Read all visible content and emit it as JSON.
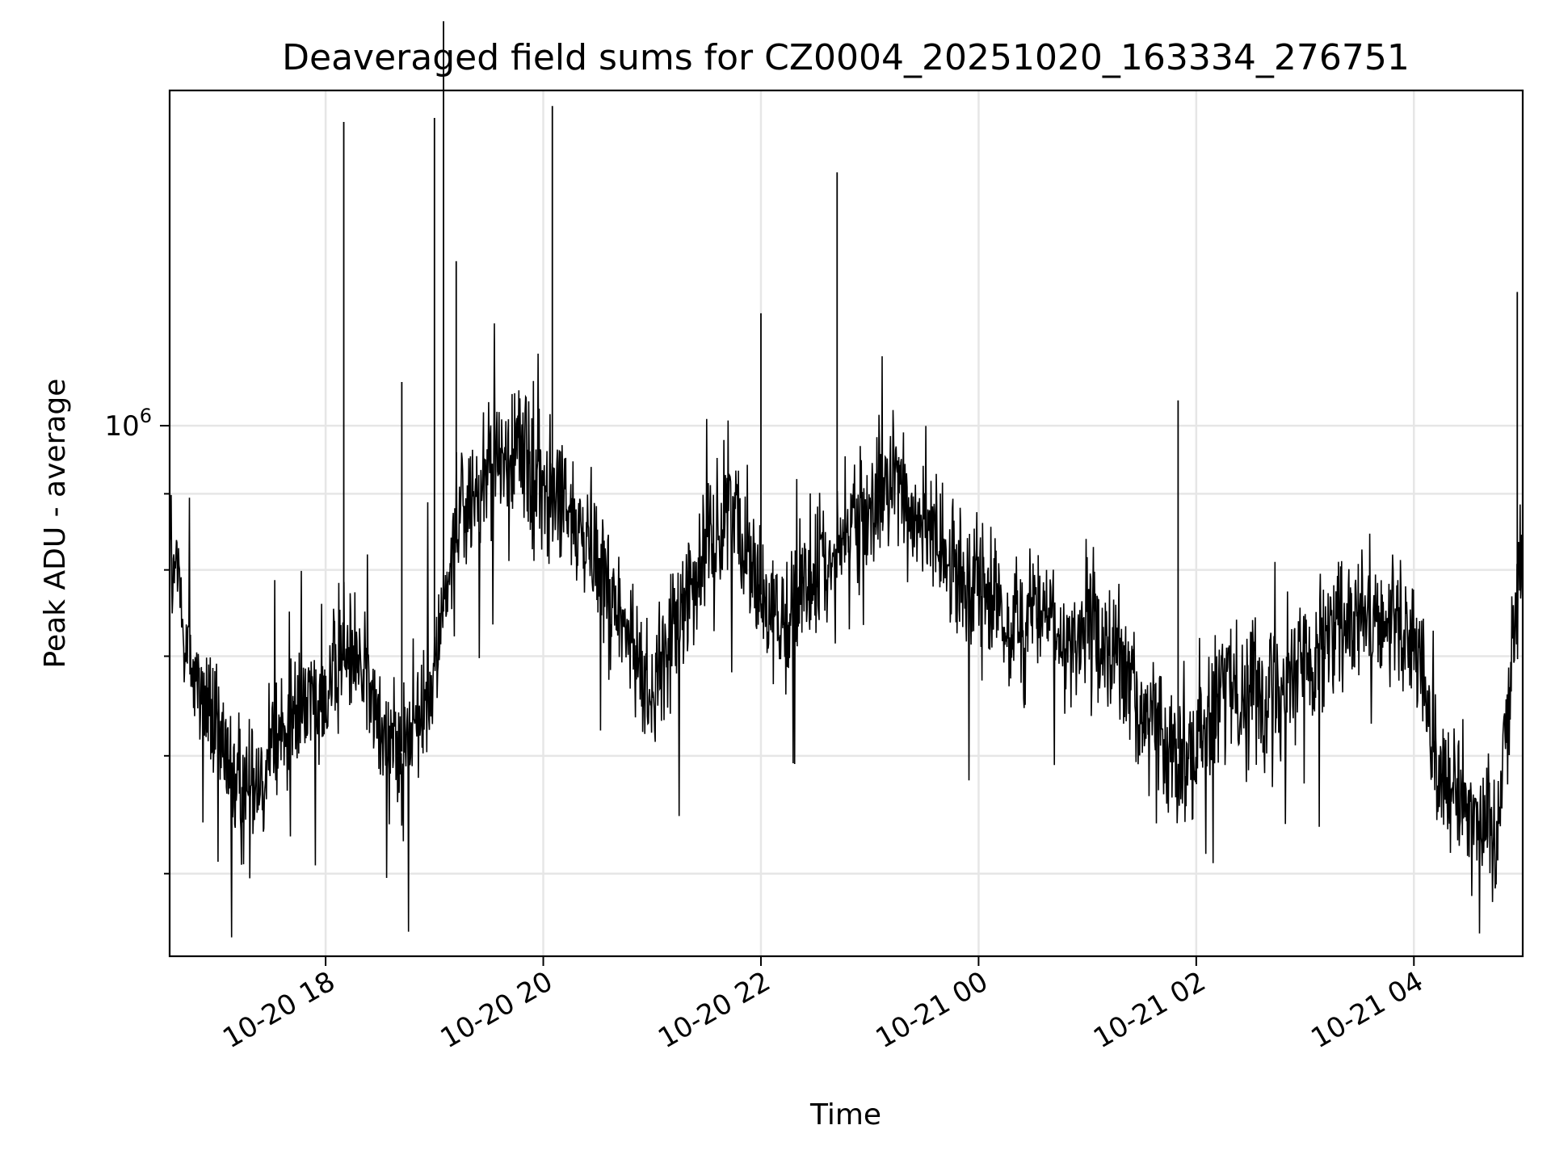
{
  "chart_data": {
    "type": "line",
    "title": "Deaveraged field sums for CZ0004_20251020_163334_276751",
    "xlabel": "Time",
    "ylabel": "Peak ADU - average",
    "x_range": [
      "2025-10-20 16:34",
      "2025-10-21 05:00"
    ],
    "y_scale": "log",
    "y_range": [
      440000,
      1680000
    ],
    "y_ticks": [
      {
        "value": 1000000,
        "base": "10",
        "exponent": "6"
      }
    ],
    "y_minor_ticks": [
      500000,
      600000,
      700000,
      800000,
      900000,
      2000000,
      3000000
    ],
    "x_ticks": [
      {
        "value": "2025-10-20 18:00",
        "label": "10-20 18"
      },
      {
        "value": "2025-10-20 20:00",
        "label": "10-20 20"
      },
      {
        "value": "2025-10-20 22:00",
        "label": "10-20 22"
      },
      {
        "value": "2025-10-21 00:00",
        "label": "10-21 00"
      },
      {
        "value": "2025-10-21 02:00",
        "label": "10-21 02"
      },
      {
        "value": "2025-10-21 04:00",
        "label": "10-21 04"
      }
    ],
    "grid": true,
    "line_color": "#000000",
    "series": [
      {
        "x": [
          "2025-10-20 16:34",
          "2025-10-20 16:45",
          "2025-10-20 17:00",
          "2025-10-20 17:15",
          "2025-10-20 17:30",
          "2025-10-20 17:45",
          "2025-10-20 18:00",
          "2025-10-20 18:15",
          "2025-10-20 18:30",
          "2025-10-20 18:45",
          "2025-10-20 19:00",
          "2025-10-20 19:15",
          "2025-10-20 19:30",
          "2025-10-20 19:45",
          "2025-10-20 20:00",
          "2025-10-20 20:15",
          "2025-10-20 20:30",
          "2025-10-20 20:45",
          "2025-10-20 21:00",
          "2025-10-20 21:15",
          "2025-10-20 21:30",
          "2025-10-20 21:45",
          "2025-10-20 22:00",
          "2025-10-20 22:15",
          "2025-10-20 22:30",
          "2025-10-20 22:45",
          "2025-10-20 23:00",
          "2025-10-20 23:15",
          "2025-10-20 23:30",
          "2025-10-20 23:45",
          "2025-10-21 00:00",
          "2025-10-21 00:15",
          "2025-10-21 00:30",
          "2025-10-21 00:45",
          "2025-10-21 01:00",
          "2025-10-21 01:15",
          "2025-10-21 01:30",
          "2025-10-21 01:45",
          "2025-10-21 02:00",
          "2025-10-21 02:15",
          "2025-10-21 02:30",
          "2025-10-21 02:45",
          "2025-10-21 03:00",
          "2025-10-21 03:15",
          "2025-10-21 03:30",
          "2025-10-21 03:45",
          "2025-10-21 04:00",
          "2025-10-21 04:15",
          "2025-10-21 04:30",
          "2025-10-21 04:45",
          "2025-10-21 05:00"
        ],
        "y": [
          830000,
          700000,
          610000,
          560000,
          600000,
          640000,
          660000,
          720000,
          620000,
          600000,
          690000,
          870000,
          930000,
          960000,
          910000,
          870000,
          820000,
          730000,
          660000,
          740000,
          830000,
          880000,
          770000,
          740000,
          790000,
          840000,
          870000,
          920000,
          850000,
          800000,
          790000,
          730000,
          760000,
          710000,
          740000,
          700000,
          650000,
          610000,
          600000,
          660000,
          670000,
          670000,
          700000,
          720000,
          740000,
          730000,
          720000,
          580000,
          560000,
          520000,
          830000
        ]
      }
    ],
    "spikes": [
      {
        "x": "2025-10-20 18:10",
        "y": 1600000
      },
      {
        "x": "2025-10-20 18:42",
        "y": 1070000
      },
      {
        "x": "2025-10-20 19:00",
        "y": 1610000
      },
      {
        "x": "2025-10-20 19:05",
        "y": 1870000
      },
      {
        "x": "2025-10-20 19:12",
        "y": 1290000
      },
      {
        "x": "2025-10-20 20:05",
        "y": 1640000
      },
      {
        "x": "2025-10-20 22:00",
        "y": 1190000
      },
      {
        "x": "2025-10-20 22:42",
        "y": 1480000
      },
      {
        "x": "2025-10-21 01:50",
        "y": 1040000
      },
      {
        "x": "2025-10-21 04:57",
        "y": 1230000
      }
    ]
  }
}
